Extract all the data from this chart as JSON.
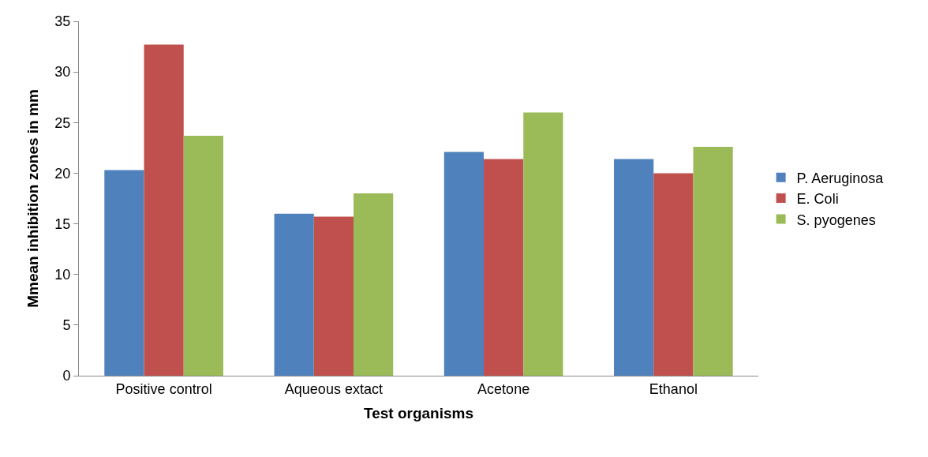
{
  "chart_data": {
    "type": "bar",
    "xlabel": "Test organisms",
    "ylabel": "Mmean inhibition zones in mm",
    "categories": [
      "Positive control",
      "Aqueous extact",
      "Acetone",
      "Ethanol"
    ],
    "series": [
      {
        "name": "P. Aeruginosa",
        "color": "#4f81bd",
        "values": [
          20.3,
          16.0,
          22.1,
          21.4
        ]
      },
      {
        "name": "E. Coli",
        "color": "#c0504d",
        "values": [
          32.7,
          15.7,
          21.4,
          20.0
        ]
      },
      {
        "name": "S. pyogenes",
        "color": "#9bbb59",
        "values": [
          23.7,
          18.0,
          26.0,
          22.6
        ]
      }
    ],
    "ylim": [
      0,
      35
    ],
    "yticks": [
      0,
      5,
      10,
      15,
      20,
      25,
      30,
      35
    ],
    "legend": "right"
  }
}
